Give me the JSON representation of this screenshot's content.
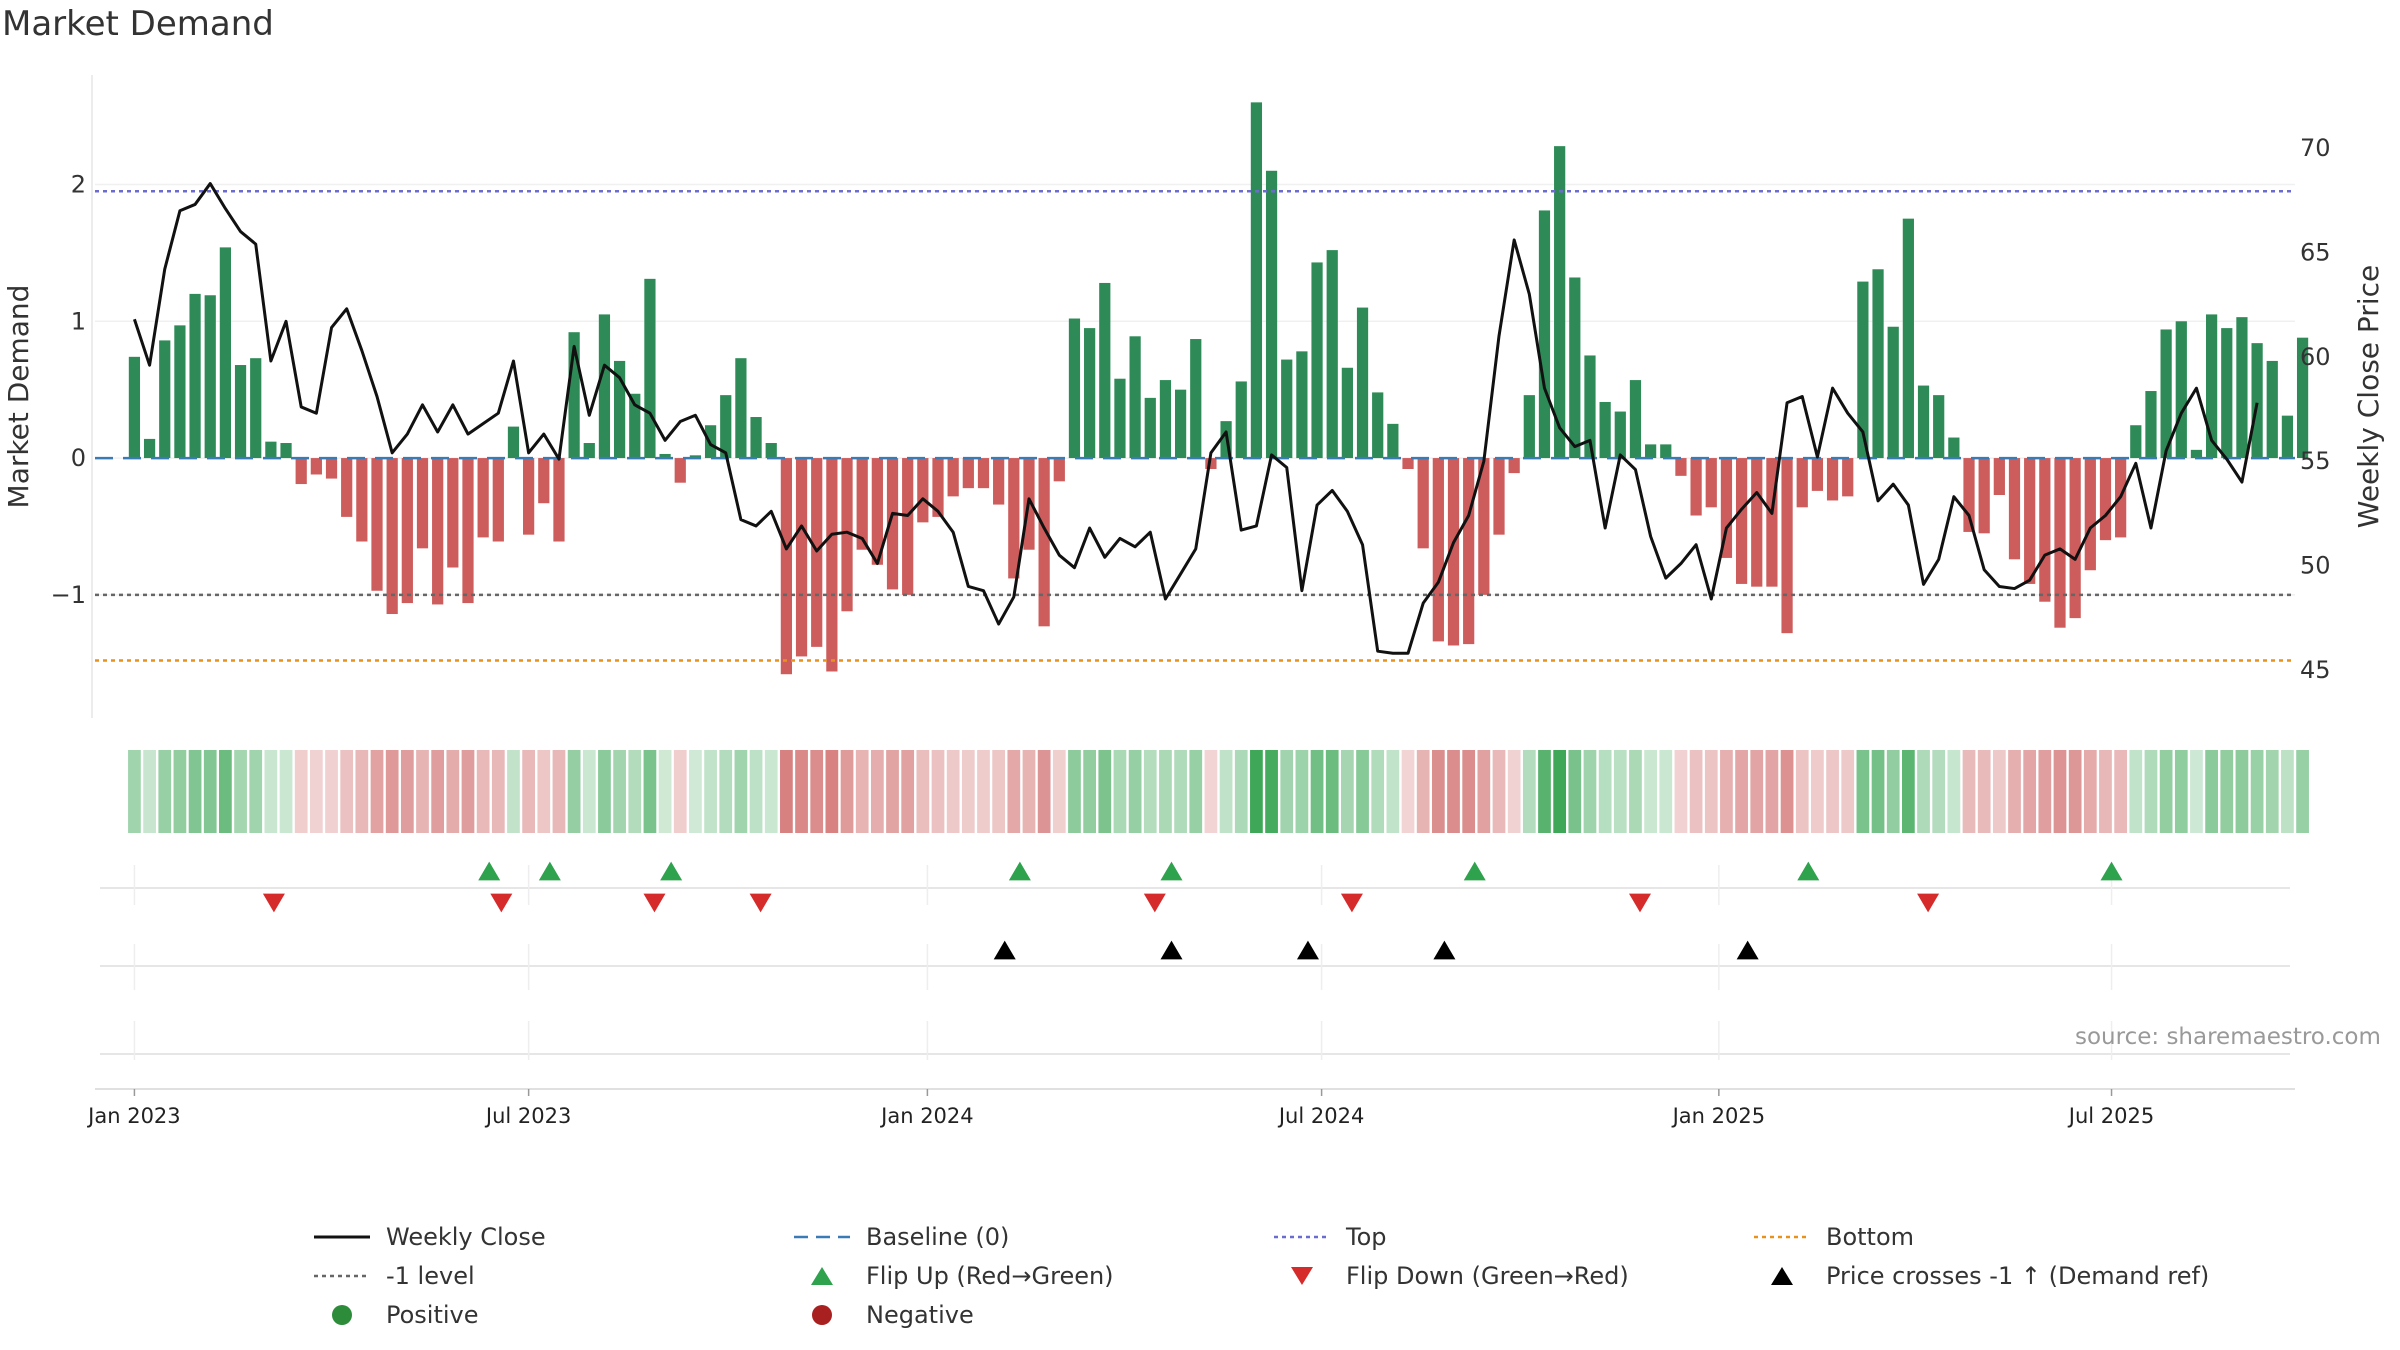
{
  "chart_data": {
    "type": "bar",
    "title": "Market Demand",
    "source": "source: sharemaestro.com",
    "primary_axis": {
      "label": "Market Demand",
      "ylim": [
        -1.9,
        2.8
      ],
      "ticks": [
        {
          "value": 2,
          "label": "2"
        },
        {
          "value": 1,
          "label": "1"
        },
        {
          "value": 0,
          "label": "0"
        },
        {
          "value": -1,
          "label": "−1"
        }
      ]
    },
    "secondary_axis": {
      "label": "Weekly Close Price",
      "ylim": [
        42.7,
        73.5
      ],
      "ticks": [
        {
          "value": 70,
          "label": "70"
        },
        {
          "value": 65,
          "label": "65"
        },
        {
          "value": 60,
          "label": "60"
        },
        {
          "value": 55,
          "label": "55"
        },
        {
          "value": 50,
          "label": "50"
        },
        {
          "value": 45,
          "label": "45"
        }
      ]
    },
    "x_range": [
      -2.6,
      142.5
    ],
    "x_ticks": [
      {
        "week": 0,
        "label": "Jan 2023"
      },
      {
        "week": 26,
        "label": "Jul 2023"
      },
      {
        "week": 52.3,
        "label": "Jan 2024"
      },
      {
        "week": 78.3,
        "label": "Jul 2024"
      },
      {
        "week": 104.5,
        "label": "Jan 2025"
      },
      {
        "week": 130.4,
        "label": "Jul 2025"
      }
    ],
    "reference_lines": {
      "top": 1.95,
      "minus_one": -1,
      "bottom": -1.48,
      "baseline": 0
    },
    "demand": [
      0.74,
      0.14,
      0.86,
      0.97,
      1.2,
      1.19,
      1.54,
      0.68,
      0.73,
      0.12,
      0.11,
      -0.19,
      -0.12,
      -0.15,
      -0.43,
      -0.61,
      -0.97,
      -1.14,
      -1.06,
      -0.66,
      -1.07,
      -0.8,
      -1.06,
      -0.58,
      -0.61,
      0.23,
      -0.56,
      -0.33,
      -0.61,
      0.92,
      0.11,
      1.05,
      0.71,
      0.47,
      1.31,
      0.03,
      -0.18,
      0.02,
      0.24,
      0.46,
      0.73,
      0.3,
      0.11,
      -1.58,
      -1.45,
      -1.38,
      -1.56,
      -1.12,
      -0.67,
      -0.78,
      -0.96,
      -1.0,
      -0.47,
      -0.43,
      -0.28,
      -0.22,
      -0.22,
      -0.34,
      -0.88,
      -0.67,
      -1.23,
      -0.17,
      1.02,
      0.95,
      1.28,
      0.58,
      0.89,
      0.44,
      0.57,
      0.5,
      0.87,
      -0.08,
      0.27,
      0.56,
      2.6,
      2.1,
      0.72,
      0.78,
      1.43,
      1.52,
      0.66,
      1.1,
      0.48,
      0.25,
      -0.08,
      -0.66,
      -1.34,
      -1.37,
      -1.36,
      -1.0,
      -0.56,
      -0.11,
      0.46,
      1.81,
      2.28,
      1.32,
      0.75,
      0.41,
      0.34,
      0.57,
      0.1,
      0.1,
      -0.13,
      -0.42,
      -0.36,
      -0.73,
      -0.92,
      -0.94,
      -0.94,
      -1.28,
      -0.36,
      -0.24,
      -0.31,
      -0.28,
      1.29,
      1.38,
      0.96,
      1.75,
      0.53,
      0.46,
      0.15,
      -0.54,
      -0.55,
      -0.27,
      -0.74,
      -0.92,
      -1.05,
      -1.24,
      -1.17,
      -0.82,
      -0.6,
      -0.58,
      0.24,
      0.49,
      0.94,
      1.0,
      0.06,
      1.05,
      0.95,
      1.03,
      0.84,
      0.71,
      0.31,
      0.88
    ],
    "price": [
      61.8,
      59.6,
      64.2,
      67.0,
      67.3,
      68.3,
      67.1,
      66.0,
      65.4,
      59.8,
      61.7,
      57.6,
      57.3,
      61.4,
      62.3,
      60.3,
      58.1,
      55.4,
      56.3,
      57.7,
      56.4,
      57.7,
      56.3,
      56.8,
      57.3,
      59.8,
      55.4,
      56.3,
      55.1,
      60.5,
      57.2,
      59.6,
      59.0,
      57.7,
      57.3,
      56.0,
      56.9,
      57.2,
      55.8,
      55.4,
      52.2,
      51.9,
      52.6,
      50.8,
      51.9,
      50.7,
      51.5,
      51.6,
      51.3,
      50.1,
      52.5,
      52.4,
      53.2,
      52.6,
      51.6,
      49.0,
      48.8,
      47.2,
      48.5,
      53.2,
      51.8,
      50.5,
      49.9,
      51.8,
      50.4,
      51.3,
      50.9,
      51.6,
      48.4,
      49.6,
      50.8,
      55.4,
      56.4,
      51.7,
      51.9,
      55.3,
      54.7,
      48.8,
      52.9,
      53.6,
      52.6,
      51.0,
      45.9,
      45.8,
      45.8,
      48.2,
      49.2,
      51.1,
      52.4,
      55.0,
      61.0,
      65.6,
      63.0,
      58.5,
      56.6,
      55.7,
      56.0,
      51.8,
      55.3,
      54.6,
      51.4,
      49.4,
      50.1,
      51.0,
      48.4,
      51.8,
      52.7,
      53.5,
      52.5,
      57.8,
      58.1,
      55.2,
      58.5,
      57.3,
      56.4,
      53.1,
      53.9,
      52.9,
      49.1,
      50.3,
      53.3,
      52.4,
      49.8,
      49.0,
      48.9,
      49.3,
      50.5,
      50.8,
      50.3,
      51.8,
      52.4,
      53.3,
      54.9,
      51.8,
      55.5,
      57.3,
      58.5,
      56.0,
      55.1,
      54.0,
      57.8
    ],
    "flip_up_weeks": [
      23.4,
      27.4,
      35.4,
      58.4,
      68.4,
      88.4,
      110.4,
      130.4
    ],
    "flip_down_weeks": [
      9.2,
      24.2,
      34.3,
      41.3,
      67.3,
      80.3,
      99.3,
      118.3
    ],
    "price_cross_weeks": [
      57.4,
      68.4,
      77.4,
      86.4,
      106.4
    ],
    "legend": [
      {
        "label": "Weekly Close",
        "marker": "line-solid",
        "color": "#111111"
      },
      {
        "label": "Baseline (0)",
        "marker": "line-dashed",
        "color": "#3a7bb5"
      },
      {
        "label": "Top",
        "marker": "line-dotted",
        "color": "#6c6cd0"
      },
      {
        "label": "Bottom",
        "marker": "line-dotted",
        "color": "#e8921d"
      },
      {
        "label": "-1 level",
        "marker": "line-dotted",
        "color": "#666666"
      },
      {
        "label": "Flip Up (Red→Green)",
        "marker": "triangle-up",
        "color": "#2ea24d"
      },
      {
        "label": "Flip Down (Green→Red)",
        "marker": "triangle-down",
        "color": "#d62b2b"
      },
      {
        "label": "Price crosses -1 ↑ (Demand ref)",
        "marker": "triangle-up",
        "color": "#000000"
      },
      {
        "label": "Positive",
        "marker": "circle",
        "color": "#2c8c3a"
      },
      {
        "label": "Negative",
        "marker": "circle",
        "color": "#a82020"
      }
    ],
    "colors": {
      "positive_bar": "#2e8b57",
      "negative_bar": "#cd5c5c"
    }
  }
}
